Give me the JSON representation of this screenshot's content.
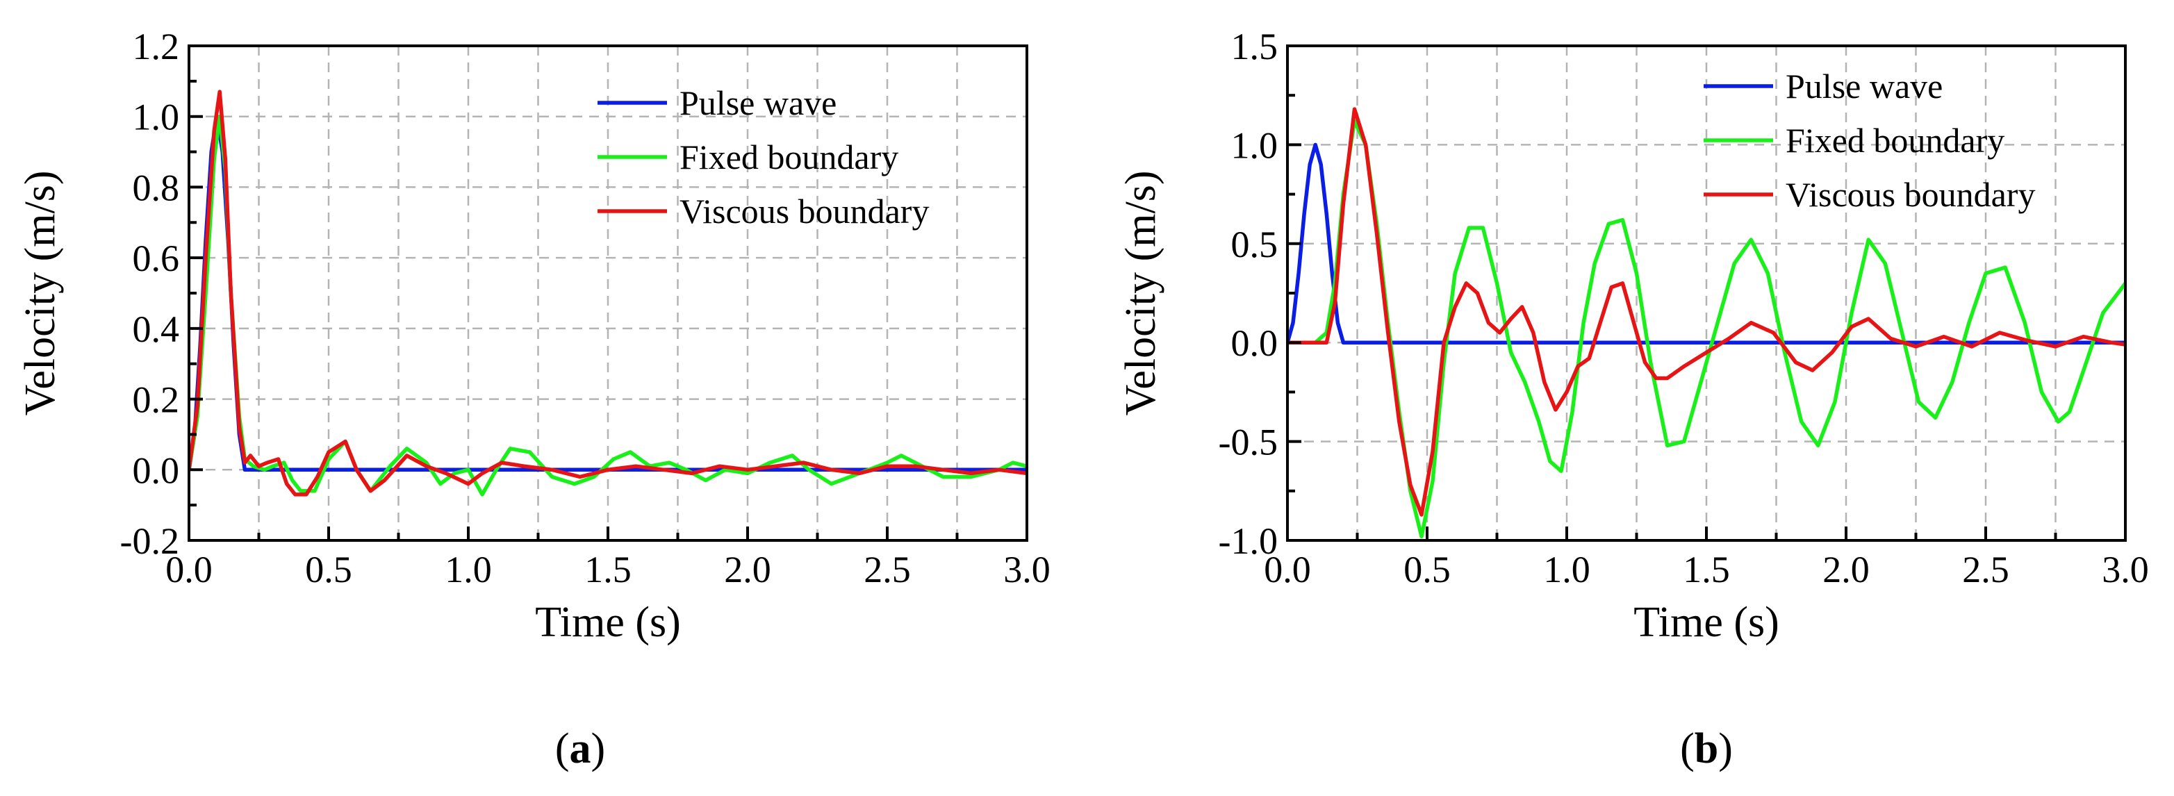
{
  "colors": {
    "pulse": "#0a1ee6",
    "fixed": "#19f019",
    "viscous": "#e61414",
    "grid": "#b4b4b4",
    "axis": "#000000"
  },
  "chart_data": [
    {
      "type": "line",
      "caption": "a",
      "xlabel": "Time (s)",
      "ylabel": "Velocity (m/s)",
      "xlim": [
        0,
        3
      ],
      "ylim": [
        -0.2,
        1.2
      ],
      "xticks": [
        0,
        0.5,
        1,
        1.5,
        2,
        2.5,
        3
      ],
      "xtick_labels": [
        "0.0",
        "0.5",
        "1.0",
        "1.5",
        "2.0",
        "2.5",
        "3.0"
      ],
      "yticks": [
        -0.2,
        0,
        0.2,
        0.4,
        0.6,
        0.8,
        1.0,
        1.2
      ],
      "ytick_labels": [
        "-0.2",
        "0.0",
        "0.2",
        "0.4",
        "0.6",
        "0.8",
        "1.0",
        "1.2"
      ],
      "grid": true,
      "legend_position": "top-right",
      "series": [
        {
          "name": "Pulse wave",
          "color_key": "pulse",
          "x": [
            0,
            0.02,
            0.04,
            0.06,
            0.08,
            0.1,
            0.12,
            0.14,
            0.16,
            0.18,
            0.2,
            3.0
          ],
          "y": [
            0,
            0.1,
            0.35,
            0.65,
            0.9,
            1.0,
            0.9,
            0.65,
            0.35,
            0.1,
            0,
            0
          ]
        },
        {
          "name": "Fixed boundary",
          "color_key": "fixed",
          "x": [
            0,
            0.03,
            0.06,
            0.09,
            0.11,
            0.13,
            0.15,
            0.18,
            0.2,
            0.23,
            0.27,
            0.3,
            0.34,
            0.37,
            0.4,
            0.45,
            0.5,
            0.56,
            0.6,
            0.65,
            0.72,
            0.78,
            0.85,
            0.9,
            0.95,
            1.0,
            1.05,
            1.1,
            1.15,
            1.22,
            1.3,
            1.38,
            1.45,
            1.52,
            1.58,
            1.65,
            1.72,
            1.78,
            1.85,
            1.92,
            2.0,
            2.08,
            2.16,
            2.22,
            2.3,
            2.4,
            2.5,
            2.55,
            2.6,
            2.7,
            2.8,
            2.9,
            2.95,
            3.0
          ],
          "y": [
            0,
            0.15,
            0.5,
            0.88,
            1.0,
            0.85,
            0.5,
            0.15,
            0.03,
            0.01,
            0.0,
            0.01,
            0.02,
            -0.03,
            -0.06,
            -0.06,
            0.03,
            0.08,
            0.0,
            -0.06,
            0.01,
            0.06,
            0.02,
            -0.04,
            -0.01,
            0.0,
            -0.07,
            0.0,
            0.06,
            0.05,
            -0.02,
            -0.04,
            -0.02,
            0.03,
            0.05,
            0.01,
            0.02,
            0.0,
            -0.03,
            0.0,
            -0.01,
            0.02,
            0.04,
            0.0,
            -0.04,
            -0.01,
            0.02,
            0.04,
            0.02,
            -0.02,
            -0.02,
            0.0,
            0.02,
            0.01
          ]
        },
        {
          "name": "Viscous boundary",
          "color_key": "viscous",
          "x": [
            0,
            0.03,
            0.06,
            0.09,
            0.11,
            0.13,
            0.15,
            0.18,
            0.2,
            0.22,
            0.25,
            0.28,
            0.32,
            0.35,
            0.38,
            0.42,
            0.46,
            0.5,
            0.56,
            0.6,
            0.65,
            0.7,
            0.78,
            0.85,
            0.92,
            1.0,
            1.05,
            1.12,
            1.2,
            1.3,
            1.4,
            1.5,
            1.6,
            1.7,
            1.8,
            1.9,
            2.0,
            2.1,
            2.2,
            2.3,
            2.4,
            2.5,
            2.6,
            2.7,
            2.8,
            2.9,
            3.0
          ],
          "y": [
            0,
            0.18,
            0.6,
            0.96,
            1.07,
            0.88,
            0.5,
            0.12,
            0.02,
            0.04,
            0.01,
            0.02,
            0.03,
            -0.04,
            -0.07,
            -0.07,
            -0.02,
            0.05,
            0.08,
            0.0,
            -0.06,
            -0.03,
            0.04,
            0.01,
            -0.01,
            -0.04,
            -0.01,
            0.02,
            0.01,
            0.0,
            -0.02,
            0.0,
            0.01,
            0.0,
            -0.01,
            0.01,
            0.0,
            0.01,
            0.02,
            0.0,
            -0.01,
            0.01,
            0.01,
            0.0,
            -0.01,
            0.0,
            -0.01
          ]
        }
      ]
    },
    {
      "type": "line",
      "caption": "b",
      "xlabel": "Time (s)",
      "ylabel": "Velocity (m/s)",
      "xlim": [
        0,
        3
      ],
      "ylim": [
        -1.0,
        1.5
      ],
      "xticks": [
        0,
        0.5,
        1,
        1.5,
        2,
        2.5,
        3
      ],
      "xtick_labels": [
        "0.0",
        "0.5",
        "1.0",
        "1.5",
        "2.0",
        "2.5",
        "3.0"
      ],
      "yticks": [
        -1.0,
        -0.5,
        0,
        0.5,
        1.0,
        1.5
      ],
      "ytick_labels": [
        "-1.0",
        "-0.5",
        "0.0",
        "0.5",
        "1.0",
        "1.5"
      ],
      "grid": true,
      "legend_position": "top-right",
      "series": [
        {
          "name": "Pulse wave",
          "color_key": "pulse",
          "x": [
            0,
            0.02,
            0.04,
            0.06,
            0.08,
            0.1,
            0.12,
            0.14,
            0.16,
            0.18,
            0.2,
            3.0
          ],
          "y": [
            0,
            0.1,
            0.35,
            0.65,
            0.9,
            1.0,
            0.9,
            0.65,
            0.35,
            0.1,
            0,
            0
          ]
        },
        {
          "name": "Fixed boundary",
          "color_key": "fixed",
          "x": [
            0,
            0.05,
            0.1,
            0.14,
            0.17,
            0.2,
            0.24,
            0.28,
            0.32,
            0.36,
            0.4,
            0.44,
            0.48,
            0.52,
            0.56,
            0.6,
            0.65,
            0.7,
            0.75,
            0.8,
            0.85,
            0.9,
            0.94,
            0.98,
            1.02,
            1.06,
            1.1,
            1.15,
            1.2,
            1.25,
            1.3,
            1.36,
            1.42,
            1.48,
            1.54,
            1.6,
            1.66,
            1.72,
            1.78,
            1.84,
            1.9,
            1.96,
            2.02,
            2.08,
            2.14,
            2.2,
            2.26,
            2.32,
            2.38,
            2.44,
            2.5,
            2.57,
            2.64,
            2.7,
            2.76,
            2.8,
            2.86,
            2.92,
            3.0
          ],
          "y": [
            0,
            0.0,
            0.0,
            0.05,
            0.3,
            0.75,
            1.12,
            1.0,
            0.6,
            0.1,
            -0.35,
            -0.75,
            -0.98,
            -0.7,
            -0.1,
            0.35,
            0.58,
            0.58,
            0.3,
            -0.05,
            -0.2,
            -0.4,
            -0.6,
            -0.65,
            -0.35,
            0.1,
            0.4,
            0.6,
            0.62,
            0.35,
            -0.1,
            -0.52,
            -0.5,
            -0.2,
            0.1,
            0.4,
            0.52,
            0.35,
            -0.05,
            -0.4,
            -0.52,
            -0.3,
            0.15,
            0.52,
            0.4,
            0.05,
            -0.3,
            -0.38,
            -0.2,
            0.1,
            0.35,
            0.38,
            0.1,
            -0.25,
            -0.4,
            -0.35,
            -0.1,
            0.15,
            0.3
          ]
        },
        {
          "name": "Viscous boundary",
          "color_key": "viscous",
          "x": [
            0,
            0.05,
            0.1,
            0.14,
            0.17,
            0.2,
            0.24,
            0.28,
            0.32,
            0.36,
            0.4,
            0.44,
            0.48,
            0.52,
            0.56,
            0.6,
            0.64,
            0.68,
            0.72,
            0.76,
            0.8,
            0.84,
            0.88,
            0.92,
            0.96,
            1.0,
            1.04,
            1.08,
            1.12,
            1.16,
            1.2,
            1.24,
            1.28,
            1.32,
            1.36,
            1.42,
            1.5,
            1.58,
            1.66,
            1.74,
            1.82,
            1.88,
            1.95,
            2.02,
            2.08,
            2.16,
            2.25,
            2.35,
            2.45,
            2.55,
            2.65,
            2.75,
            2.85,
            2.95,
            3.0
          ],
          "y": [
            0,
            0.0,
            0.0,
            0.0,
            0.2,
            0.7,
            1.18,
            1.0,
            0.55,
            0.05,
            -0.4,
            -0.72,
            -0.87,
            -0.55,
            0.0,
            0.18,
            0.3,
            0.25,
            0.1,
            0.05,
            0.12,
            0.18,
            0.05,
            -0.2,
            -0.34,
            -0.25,
            -0.12,
            -0.08,
            0.1,
            0.28,
            0.3,
            0.1,
            -0.1,
            -0.18,
            -0.18,
            -0.12,
            -0.05,
            0.02,
            0.1,
            0.05,
            -0.1,
            -0.14,
            -0.05,
            0.08,
            0.12,
            0.02,
            -0.02,
            0.03,
            -0.02,
            0.05,
            0.01,
            -0.02,
            0.03,
            0.0,
            -0.01
          ]
        }
      ]
    }
  ]
}
